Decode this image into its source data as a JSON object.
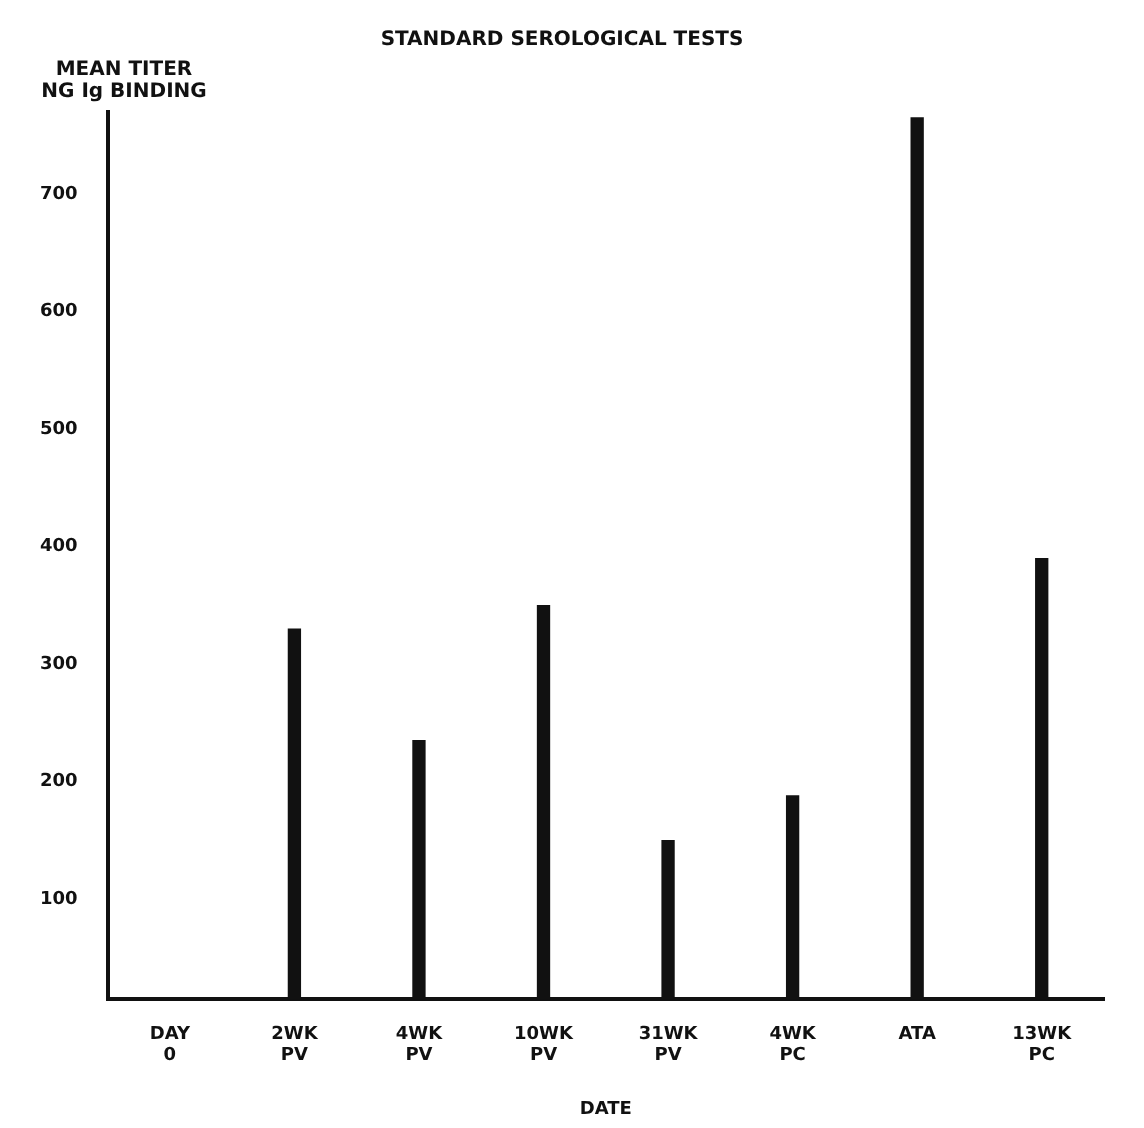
{
  "chart_data": {
    "type": "bar",
    "title": "STANDARD SEROLOGICAL TESTS",
    "ylabel": "MEAN TITER\nNG Ig BINDING",
    "xlabel": "DATE",
    "categories": [
      "DAY\n0",
      "2WK\nPV",
      "4WK\nPV",
      "10WK\nPV",
      "31WK\nPV",
      "4WK\nPC",
      "ATA",
      "13WK\nPC"
    ],
    "values": [
      null,
      330,
      235,
      350,
      150,
      188,
      765,
      390
    ],
    "color": "#111111",
    "ylim": [
      15,
      770
    ],
    "yticks": [
      100,
      200,
      300,
      400,
      500,
      600,
      700
    ],
    "grid": false,
    "legend": false
  }
}
